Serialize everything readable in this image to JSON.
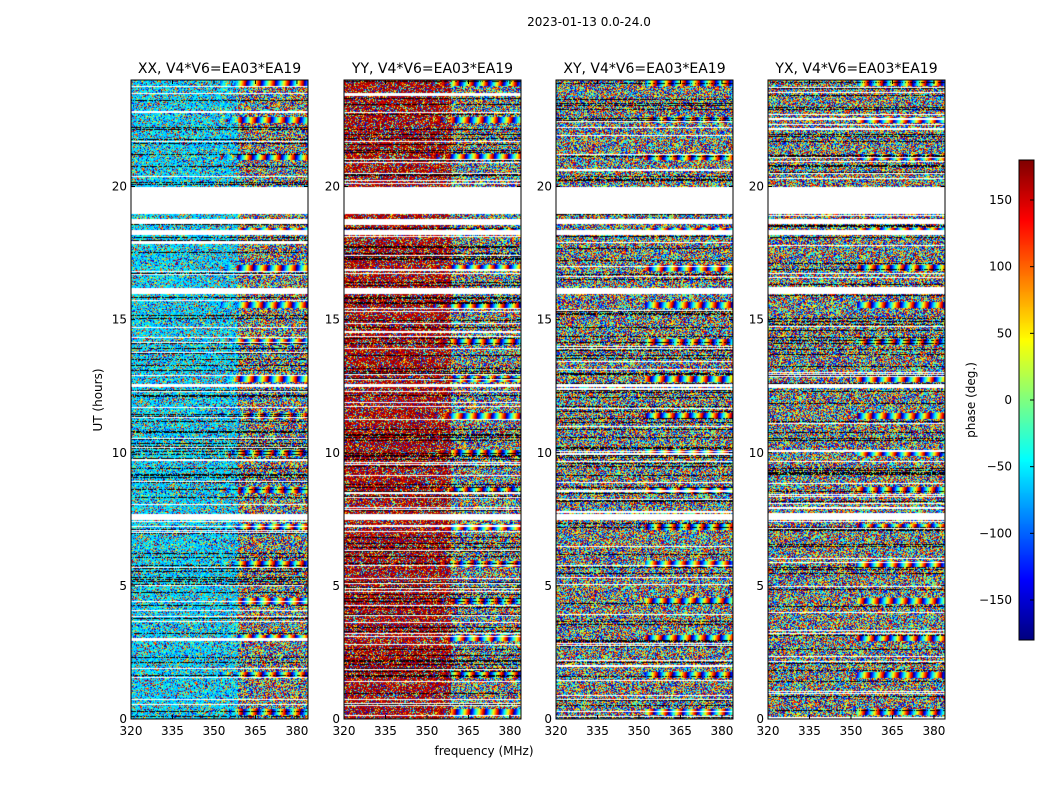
{
  "chart_data": {
    "type": "heatmap",
    "suptitle": "2023-01-13 0.0-24.0",
    "xlabel": "frequency (MHz)",
    "ylabel": "UT (hours)",
    "xlim": [
      320,
      384
    ],
    "ylim": [
      0,
      24
    ],
    "xticks": [
      320,
      335,
      350,
      365,
      380
    ],
    "yticks": [
      0,
      5,
      10,
      15,
      20
    ],
    "panels": [
      {
        "title": "XX, V4*V6=EA03*EA19",
        "baseline_phase_deg": -60
      },
      {
        "title": "YY, V4*V6=EA03*EA19",
        "baseline_phase_deg": 165
      },
      {
        "title": "XY, V4*V6=EA03*EA19",
        "baseline_phase_deg": null
      },
      {
        "title": "YX, V4*V6=EA03*EA19",
        "baseline_phase_deg": null
      }
    ],
    "colorbar": {
      "label": "phase (deg.)",
      "range": [
        -180,
        180
      ],
      "ticks": [
        -150,
        -100,
        -50,
        0,
        50,
        100,
        150
      ],
      "tick_labels": [
        "−150",
        "−100",
        "−50",
        "0",
        "50",
        "100",
        "150"
      ],
      "colormap": "jet"
    },
    "gap_bands_ut": [
      [
        18.2,
        18.4
      ],
      [
        18.6,
        18.8
      ],
      [
        19.0,
        20.0
      ],
      [
        7.5,
        7.7
      ],
      [
        16.0,
        16.2
      ],
      [
        12.5,
        12.6
      ]
    ]
  }
}
